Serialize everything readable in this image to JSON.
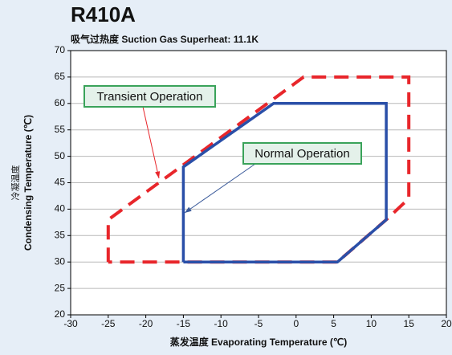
{
  "chart_data": {
    "type": "line",
    "title": "R410A",
    "subtitle": "吸气过热度 Suction Gas Superheat: 11.1K",
    "xlabel": "蒸发温度 Evaporating Temperature (℃)",
    "ylabel": [
      "冷凝温度",
      "Condensing Temperature (℃)"
    ],
    "xlim": [
      -30,
      20
    ],
    "xticks": [
      -30,
      -25,
      -20,
      -15,
      -10,
      -5,
      0,
      5,
      10,
      15,
      20
    ],
    "ylim": [
      20,
      70
    ],
    "yticks": [
      20,
      25,
      30,
      35,
      40,
      45,
      50,
      55,
      60,
      65,
      70
    ],
    "grid": true,
    "series": [
      {
        "name": "Transient Operation",
        "color": "#e8262b",
        "dashed": true,
        "x": [
          -25,
          -25,
          1,
          15,
          15,
          12,
          5.5,
          -25
        ],
        "y": [
          30,
          38,
          65,
          65,
          42,
          38,
          30,
          30
        ]
      },
      {
        "name": "Normal Operation",
        "color": "#2a4fa8",
        "dashed": false,
        "x": [
          -15,
          -15,
          -3,
          12,
          12,
          5.5,
          -15
        ],
        "y": [
          30,
          48,
          60,
          60,
          38,
          30,
          30
        ]
      }
    ]
  }
}
